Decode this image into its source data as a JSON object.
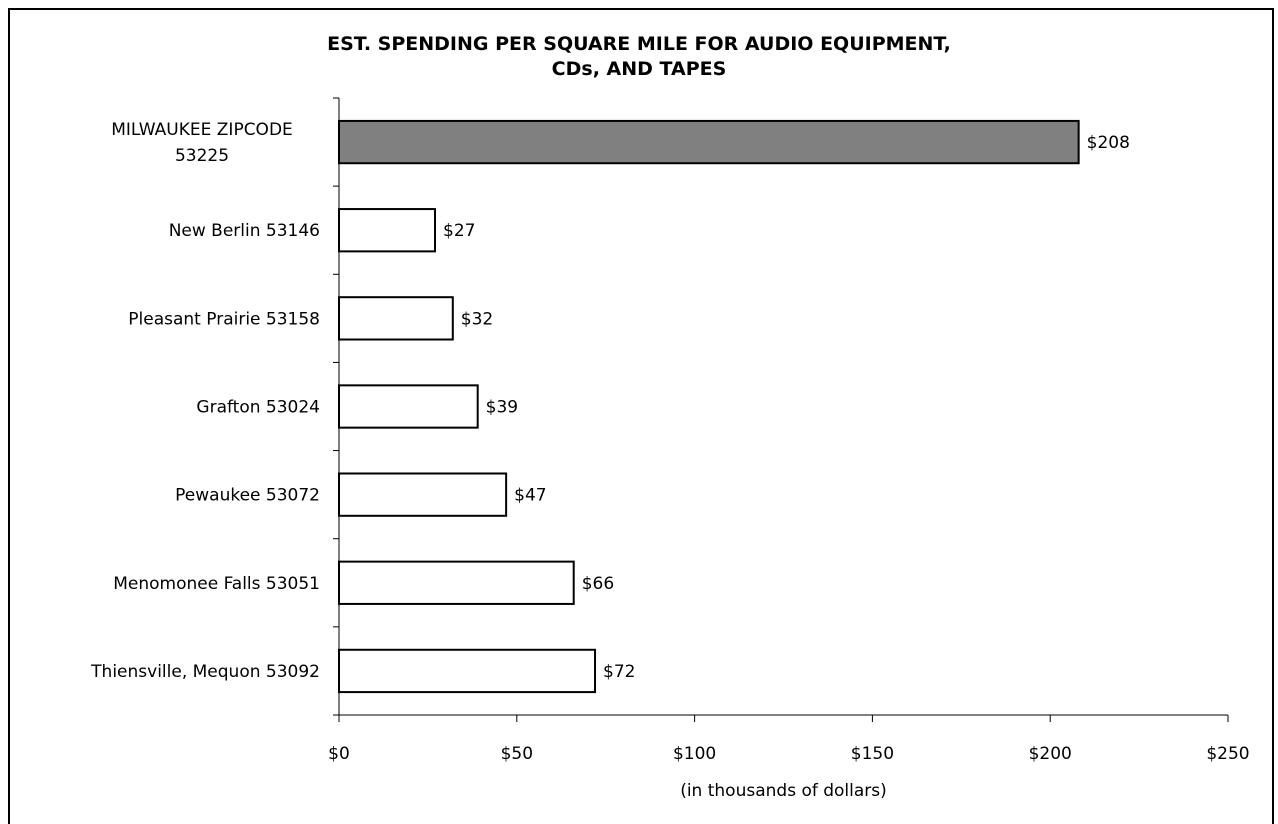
{
  "chart_data": {
    "type": "bar",
    "orientation": "horizontal",
    "title_lines": [
      "EST. SPENDING PER SQUARE MILE FOR AUDIO EQUIPMENT,",
      "CDs, AND TAPES"
    ],
    "xlabel": "(in thousands of dollars)",
    "ylabel": "",
    "xlim": [
      0,
      250
    ],
    "x_ticks": [
      0,
      50,
      100,
      150,
      200,
      250
    ],
    "x_tick_labels": [
      "$0",
      "$50",
      "$100",
      "$150",
      "$200",
      "$250"
    ],
    "grid": false,
    "legend": "none",
    "categories": [
      [
        "MILWAUKEE ZIPCODE",
        "53225"
      ],
      [
        "New Berlin 53146"
      ],
      [
        "Pleasant Prairie 53158"
      ],
      [
        "Grafton 53024"
      ],
      [
        "Pewaukee 53072"
      ],
      [
        "Menomonee Falls 53051"
      ],
      [
        "Thiensville, Mequon 53092"
      ]
    ],
    "values": [
      208,
      27,
      32,
      39,
      47,
      66,
      72
    ],
    "value_labels": [
      "$208",
      "$27",
      "$32",
      "$39",
      "$47",
      "$66",
      "$72"
    ],
    "bar_colors": [
      "#808080",
      "#ffffff",
      "#ffffff",
      "#ffffff",
      "#ffffff",
      "#ffffff",
      "#ffffff"
    ]
  }
}
